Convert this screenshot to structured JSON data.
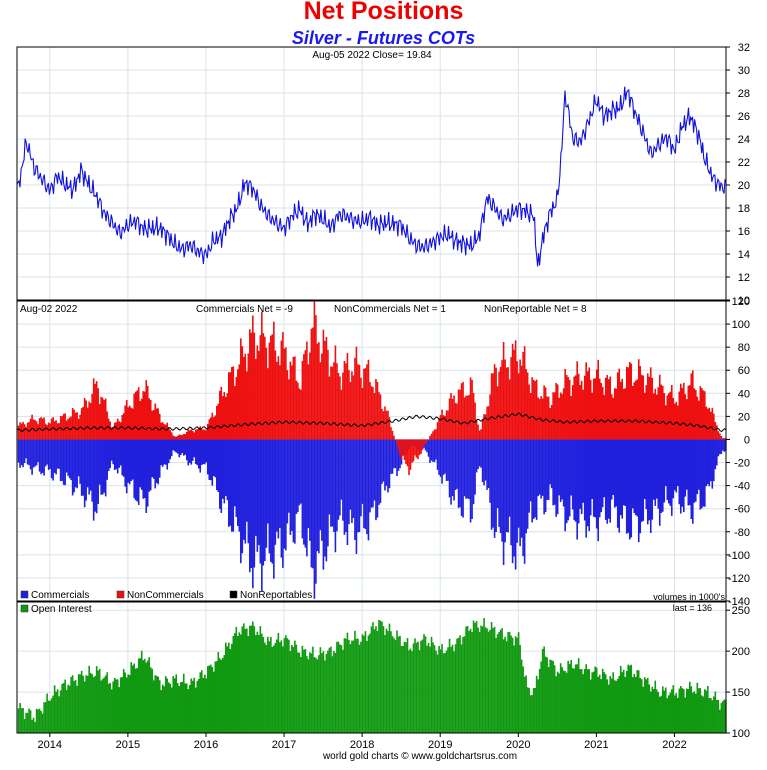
{
  "title": "Net Positions",
  "subtitle": "Silver - Futures COTs",
  "colors": {
    "title": "#ee0000",
    "subtitle": "#1a1aee",
    "price_line": "#1010dd",
    "commercials": "#2020dd",
    "noncommercials": "#ee1010",
    "nonreportables": "#000000",
    "open_interest": "#119911",
    "grid": "#d8e4ea"
  },
  "footer": "world gold charts © www.goldchartsrus.com",
  "chart_data": [
    {
      "type": "line",
      "header": "Aug-05  2022   Close= 19.84",
      "series": [
        {
          "name": "",
          "x": [
            2013.6,
            2013.7,
            2013.8,
            2013.9,
            2014.0,
            2014.1,
            2014.2,
            2014.3,
            2014.4,
            2014.5,
            2014.6,
            2014.7,
            2014.8,
            2014.9,
            2015.0,
            2015.1,
            2015.2,
            2015.3,
            2015.4,
            2015.5,
            2015.6,
            2015.7,
            2015.8,
            2015.9,
            2016.0,
            2016.1,
            2016.2,
            2016.3,
            2016.4,
            2016.5,
            2016.6,
            2016.7,
            2016.8,
            2016.9,
            2017.0,
            2017.1,
            2017.2,
            2017.3,
            2017.4,
            2017.5,
            2017.6,
            2017.7,
            2017.8,
            2017.9,
            2018.0,
            2018.1,
            2018.2,
            2018.3,
            2018.4,
            2018.5,
            2018.6,
            2018.7,
            2018.8,
            2018.9,
            2019.0,
            2019.1,
            2019.2,
            2019.3,
            2019.4,
            2019.5,
            2019.6,
            2019.7,
            2019.8,
            2019.9,
            2020.0,
            2020.1,
            2020.2,
            2020.25,
            2020.3,
            2020.4,
            2020.5,
            2020.55,
            2020.6,
            2020.7,
            2020.8,
            2020.9,
            2021.0,
            2021.1,
            2021.2,
            2021.3,
            2021.4,
            2021.5,
            2021.6,
            2021.7,
            2021.8,
            2021.9,
            2022.0,
            2022.1,
            2022.2,
            2022.3,
            2022.4,
            2022.5,
            2022.6
          ],
          "values": [
            19.8,
            23.8,
            21.5,
            20.5,
            19.5,
            20.8,
            20.0,
            19.6,
            21.3,
            20.0,
            19.0,
            17.5,
            16.7,
            15.8,
            16.5,
            16.9,
            16.2,
            16.2,
            16.3,
            15.7,
            14.8,
            14.4,
            14.8,
            14.2,
            13.9,
            15.2,
            15.5,
            17.0,
            18.0,
            20.2,
            19.7,
            18.2,
            17.3,
            16.7,
            16.2,
            17.3,
            17.9,
            16.6,
            17.5,
            17.0,
            16.3,
            17.4,
            17.3,
            16.9,
            16.8,
            17.2,
            16.5,
            16.7,
            16.6,
            16.5,
            15.4,
            14.7,
            14.6,
            15.0,
            15.5,
            15.7,
            15.1,
            14.9,
            14.7,
            15.6,
            18.9,
            18.0,
            17.0,
            17.4,
            18.0,
            17.7,
            17.3,
            12.6,
            15.0,
            17.5,
            18.7,
            22.5,
            28.0,
            24.0,
            23.8,
            25.5,
            27.4,
            26.0,
            26.5,
            26.7,
            28.2,
            26.2,
            24.5,
            22.7,
            23.5,
            24.2,
            23.0,
            25.1,
            26.0,
            24.5,
            22.0,
            20.5,
            19.84
          ]
        }
      ],
      "ylim": [
        10,
        32
      ],
      "yticks": [
        10,
        12,
        14,
        16,
        18,
        20,
        22,
        24,
        26,
        28,
        30,
        32
      ]
    },
    {
      "type": "bar",
      "header_date": "Aug-02  2022",
      "header_labels": [
        "Commercials Net = -9",
        "NonCommercials Net = 1",
        "NonReportable Net = 8"
      ],
      "legend": [
        "Commercials",
        "NonCommercials",
        "NonReportables"
      ],
      "series": [
        {
          "name": "Commercials",
          "x": [
            2013.6,
            2013.8,
            2014.0,
            2014.2,
            2014.4,
            2014.6,
            2014.8,
            2015.0,
            2015.2,
            2015.4,
            2015.6,
            2015.8,
            2016.0,
            2016.2,
            2016.4,
            2016.6,
            2016.8,
            2017.0,
            2017.2,
            2017.35,
            2017.5,
            2017.7,
            2017.9,
            2018.1,
            2018.3,
            2018.5,
            2018.6,
            2018.8,
            2019.0,
            2019.2,
            2019.4,
            2019.5,
            2019.7,
            2019.9,
            2020.0,
            2020.2,
            2020.4,
            2020.6,
            2020.8,
            2021.0,
            2021.2,
            2021.4,
            2021.6,
            2021.8,
            2022.0,
            2022.2,
            2022.4,
            2022.6
          ],
          "values": [
            -20,
            -25,
            -28,
            -35,
            -45,
            -60,
            -20,
            -40,
            -55,
            -30,
            -10,
            -20,
            -25,
            -55,
            -80,
            -108,
            -100,
            -90,
            -65,
            -115,
            -95,
            -70,
            -80,
            -70,
            -40,
            -20,
            -5,
            -10,
            -30,
            -55,
            -60,
            -20,
            -80,
            -90,
            -100,
            -60,
            -50,
            -65,
            -70,
            -70,
            -60,
            -75,
            -70,
            -60,
            -50,
            -60,
            -50,
            -9
          ]
        },
        {
          "name": "NonCommercials",
          "x": [
            2013.6,
            2013.8,
            2014.0,
            2014.2,
            2014.4,
            2014.6,
            2014.8,
            2015.0,
            2015.2,
            2015.4,
            2015.6,
            2015.8,
            2016.0,
            2016.2,
            2016.4,
            2016.6,
            2016.8,
            2017.0,
            2017.2,
            2017.35,
            2017.5,
            2017.7,
            2017.9,
            2018.1,
            2018.3,
            2018.5,
            2018.6,
            2018.8,
            2019.0,
            2019.2,
            2019.4,
            2019.5,
            2019.7,
            2019.9,
            2020.0,
            2020.2,
            2020.4,
            2020.6,
            2020.8,
            2021.0,
            2021.2,
            2021.4,
            2021.6,
            2021.8,
            2022.0,
            2022.2,
            2022.4,
            2022.6
          ],
          "values": [
            12,
            18,
            15,
            20,
            25,
            48,
            10,
            30,
            45,
            20,
            2,
            8,
            10,
            40,
            65,
            90,
            85,
            75,
            50,
            100,
            80,
            58,
            65,
            55,
            25,
            -18,
            -25,
            -5,
            20,
            40,
            45,
            5,
            62,
            70,
            75,
            45,
            35,
            50,
            55,
            55,
            45,
            58,
            55,
            45,
            35,
            50,
            35,
            1
          ]
        },
        {
          "name": "NonReportables",
          "x": [
            2013.6,
            2014.0,
            2014.5,
            2015.0,
            2015.5,
            2016.0,
            2016.5,
            2017.0,
            2017.5,
            2018.0,
            2018.4,
            2018.7,
            2019.0,
            2019.3,
            2019.6,
            2020.0,
            2020.3,
            2020.6,
            2021.0,
            2021.5,
            2022.0,
            2022.3,
            2022.6
          ],
          "values": [
            8,
            9,
            10,
            10,
            9,
            10,
            13,
            15,
            14,
            12,
            16,
            20,
            18,
            14,
            18,
            22,
            17,
            15,
            16,
            16,
            14,
            12,
            8
          ]
        }
      ],
      "ylim": [
        -140,
        120
      ],
      "yticks": [
        -140,
        -120,
        -100,
        -80,
        -60,
        -40,
        -20,
        0,
        20,
        40,
        60,
        80,
        100,
        120
      ]
    },
    {
      "type": "bar",
      "legend": [
        "Open Interest"
      ],
      "notes": [
        "volumes in 1000's",
        "last = 136"
      ],
      "series": [
        {
          "name": "Open Interest",
          "x": [
            2013.6,
            2013.8,
            2014.0,
            2014.2,
            2014.4,
            2014.6,
            2014.8,
            2015.0,
            2015.2,
            2015.4,
            2015.6,
            2015.8,
            2016.0,
            2016.2,
            2016.4,
            2016.6,
            2016.8,
            2017.0,
            2017.2,
            2017.4,
            2017.6,
            2017.8,
            2018.0,
            2018.2,
            2018.4,
            2018.6,
            2018.8,
            2019.0,
            2019.2,
            2019.4,
            2019.6,
            2019.8,
            2020.0,
            2020.1,
            2020.2,
            2020.3,
            2020.5,
            2020.7,
            2020.9,
            2021.0,
            2021.2,
            2021.4,
            2021.6,
            2021.8,
            2022.0,
            2022.2,
            2022.4,
            2022.6
          ],
          "values": [
            130,
            120,
            145,
            160,
            170,
            175,
            160,
            175,
            195,
            160,
            165,
            160,
            175,
            195,
            225,
            230,
            210,
            215,
            200,
            195,
            200,
            215,
            215,
            235,
            220,
            205,
            215,
            200,
            210,
            232,
            230,
            220,
            215,
            155,
            150,
            200,
            175,
            185,
            175,
            175,
            165,
            180,
            165,
            150,
            150,
            155,
            150,
            136
          ]
        }
      ],
      "ylim": [
        100,
        260
      ],
      "yticks": [
        100,
        150,
        200,
        250
      ]
    }
  ],
  "x_axis": {
    "range": [
      2013.58,
      2022.66
    ],
    "tick_labels": [
      "2014",
      "2015",
      "2016",
      "2017",
      "2018",
      "2019",
      "2020",
      "2021",
      "2022"
    ]
  }
}
